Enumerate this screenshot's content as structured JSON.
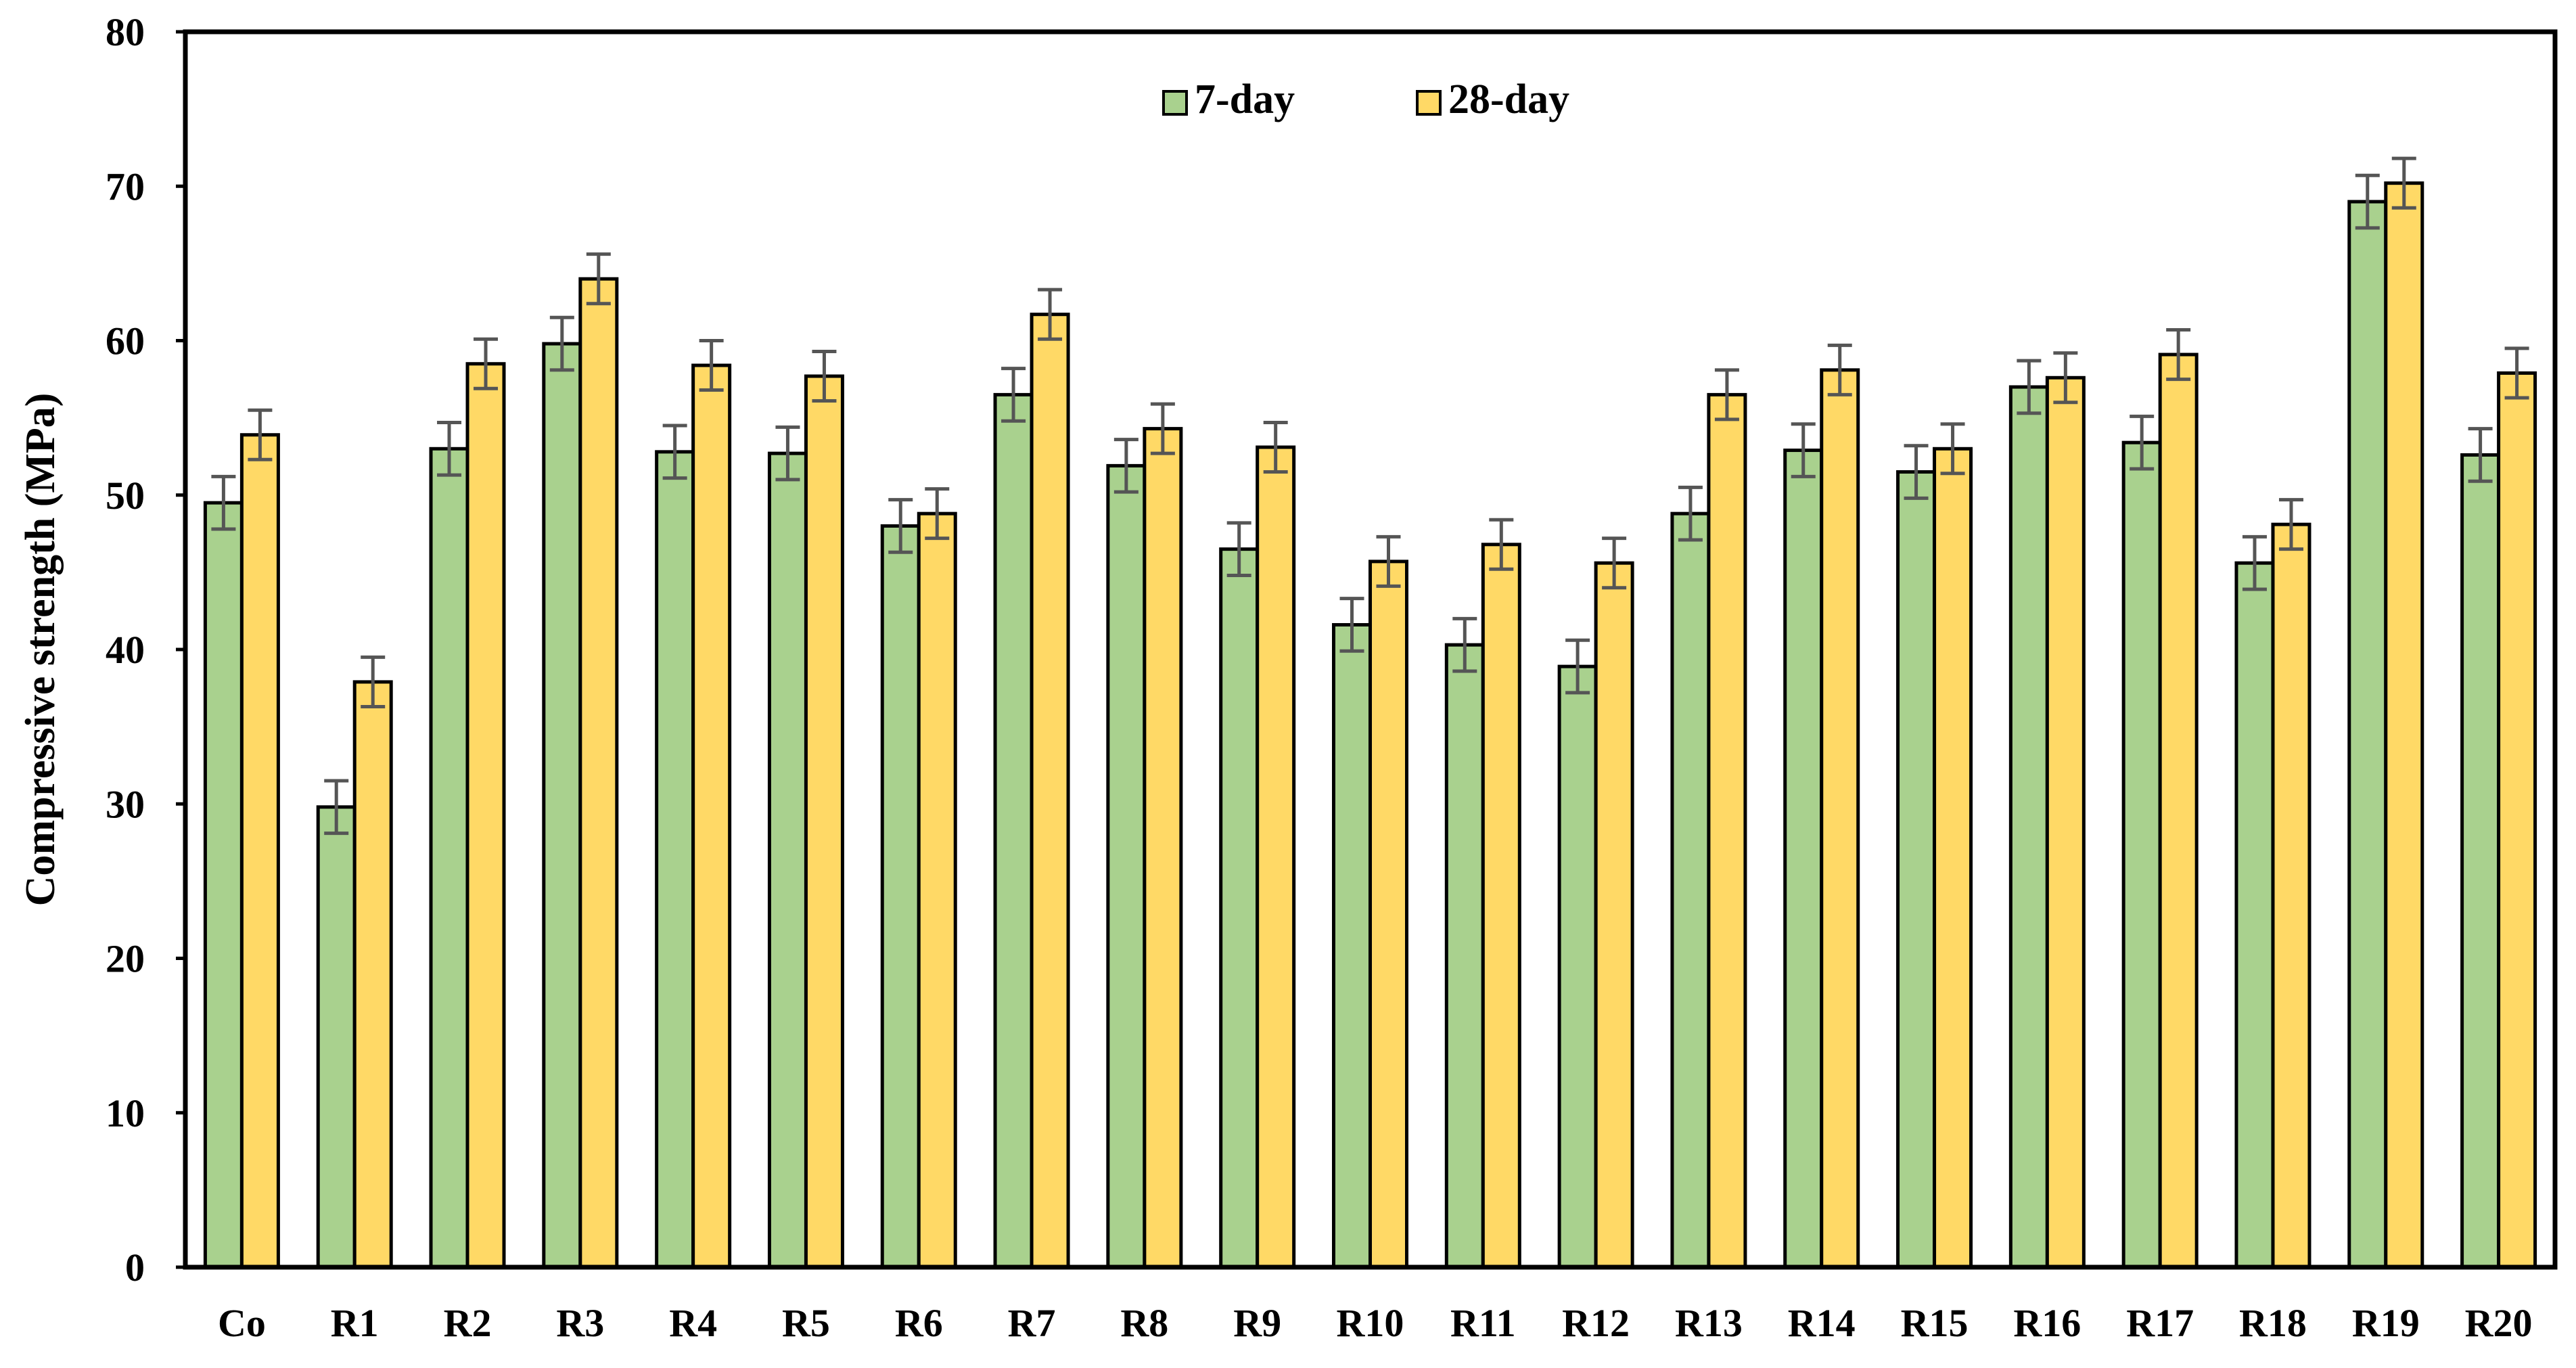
{
  "chart_data": {
    "type": "bar",
    "title": "",
    "xlabel": "",
    "ylabel": "Compressive strength (MPa)",
    "ylim": [
      0,
      80
    ],
    "yticks": [
      0,
      10,
      20,
      30,
      40,
      50,
      60,
      70,
      80
    ],
    "grid": false,
    "legend_position": "top-center",
    "categories": [
      "Co",
      "R1",
      "R2",
      "R3",
      "R4",
      "R5",
      "R6",
      "R7",
      "R8",
      "R9",
      "R10",
      "R11",
      "R12",
      "R13",
      "R14",
      "R15",
      "R16",
      "R17",
      "R18",
      "R19",
      "R20"
    ],
    "series": [
      {
        "name": "7-day",
        "color": "#a9d18e",
        "values": [
          49.5,
          29.8,
          53.0,
          59.8,
          52.8,
          52.7,
          48.0,
          56.5,
          51.9,
          46.5,
          41.6,
          40.3,
          38.9,
          48.8,
          52.9,
          51.5,
          57.0,
          53.4,
          45.6,
          69.0,
          52.6
        ],
        "errors": [
          1.7,
          1.7,
          1.7,
          1.7,
          1.7,
          1.7,
          1.7,
          1.7,
          1.7,
          1.7,
          1.7,
          1.7,
          1.7,
          1.7,
          1.7,
          1.7,
          1.7,
          1.7,
          1.7,
          1.7,
          1.7
        ]
      },
      {
        "name": "28-day",
        "color": "#ffd966",
        "values": [
          53.9,
          37.9,
          58.5,
          64.0,
          58.4,
          57.7,
          48.8,
          61.7,
          54.3,
          53.1,
          45.7,
          46.8,
          45.6,
          56.5,
          58.1,
          53.0,
          57.6,
          59.1,
          48.1,
          70.2,
          57.9
        ],
        "errors": [
          1.6,
          1.6,
          1.6,
          1.6,
          1.6,
          1.6,
          1.6,
          1.6,
          1.6,
          1.6,
          1.6,
          1.6,
          1.6,
          1.6,
          1.6,
          1.6,
          1.6,
          1.6,
          1.6,
          1.6,
          1.6
        ]
      }
    ]
  }
}
